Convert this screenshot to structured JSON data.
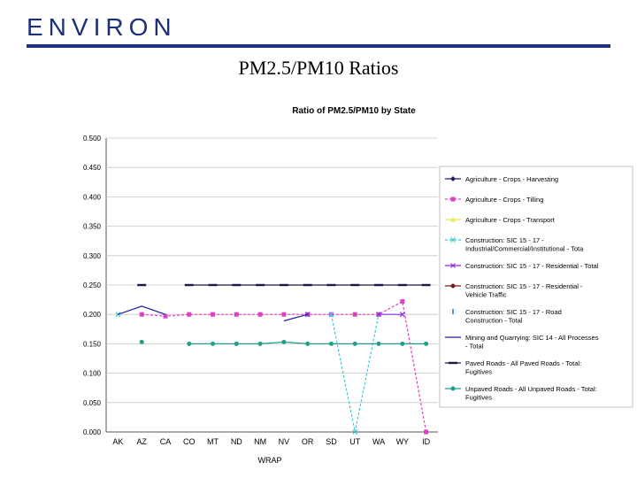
{
  "header": {
    "logo": "ENVIRON",
    "slide_title": "PM2.5/PM10 Ratios"
  },
  "colors": {
    "brand": "#1c2f7a",
    "grid": "#c8c8c8"
  },
  "chart_data": {
    "type": "line",
    "title": "Ratio of PM2.5/PM10 by State",
    "xlabel": "WRAP",
    "ylabel": "",
    "ylim": [
      0,
      0.5
    ],
    "grid": true,
    "legend_position": "right",
    "y_ticks": [
      "0.000",
      "0.050",
      "0.100",
      "0.150",
      "0.200",
      "0.250",
      "0.300",
      "0.350",
      "0.400",
      "0.450",
      "0.500"
    ],
    "categories": [
      "AK",
      "AZ",
      "CA",
      "CO",
      "MT",
      "ND",
      "NM",
      "NV",
      "OR",
      "SD",
      "UT",
      "WA",
      "WY",
      "ID"
    ],
    "series": [
      {
        "name": "Agriculture - Crops - Harvesting",
        "color": "#1f1f6e",
        "marker": "diamond",
        "dashed": false,
        "values": [
          null,
          null,
          null,
          null,
          null,
          null,
          null,
          null,
          null,
          null,
          null,
          null,
          null,
          null
        ]
      },
      {
        "name": "Agriculture - Crops - Tilling",
        "color": "#e040c0",
        "marker": "square",
        "dashed": true,
        "values": [
          null,
          0.2,
          0.197,
          0.2,
          0.2,
          0.2,
          0.2,
          0.2,
          0.2,
          0.2,
          0.2,
          0.2,
          0.222,
          0
        ]
      },
      {
        "name": "Agriculture - Crops - Transport",
        "color": "#e8e84a",
        "marker": "triangle",
        "dashed": false,
        "values": [
          null,
          null,
          null,
          null,
          null,
          null,
          null,
          null,
          null,
          null,
          null,
          null,
          null,
          null
        ]
      },
      {
        "name": "Construction: SIC 15 - 17 - Industrial/Commercial/Institutional - Total",
        "color": "#40c8d8",
        "marker": "x",
        "dashed": true,
        "values": [
          0.2,
          null,
          null,
          null,
          null,
          null,
          null,
          null,
          null,
          0.2,
          0,
          0.2,
          null,
          null
        ]
      },
      {
        "name": "Construction: SIC 15 - 17 - Residential - Total",
        "color": "#8a2be2",
        "marker": "x",
        "dashed": false,
        "values": [
          null,
          null,
          null,
          null,
          null,
          null,
          null,
          null,
          0.2,
          null,
          null,
          0.2,
          0.2,
          null
        ]
      },
      {
        "name": "Construction: SIC 15 - 17 - Residential - Vehicle Traffic",
        "color": "#7a1f1f",
        "marker": "circle",
        "dashed": false,
        "values": [
          null,
          null,
          null,
          null,
          null,
          null,
          null,
          null,
          null,
          null,
          null,
          null,
          null,
          null
        ]
      },
      {
        "name": "Construction: SIC 15 - 17 - Road Construction - Total",
        "color": "#2e8bc0",
        "marker": "bar",
        "dashed": false,
        "values": [
          null,
          null,
          null,
          null,
          null,
          null,
          null,
          null,
          null,
          null,
          null,
          null,
          null,
          null
        ]
      },
      {
        "name": "Mining and Quarrying: SIC 14 - All Processes - Total",
        "color": "#1f1f9e",
        "marker": "none",
        "dashed": false,
        "values": [
          0.2,
          0.214,
          0.2,
          null,
          null,
          null,
          null,
          0.189,
          0.2,
          null,
          null,
          null,
          0.2,
          null
        ]
      },
      {
        "name": "Paved Roads - All Paved Roads - Total: Fugitives",
        "color": "#1a1a4a",
        "marker": "dash",
        "dashed": false,
        "values": [
          null,
          0.25,
          null,
          0.25,
          0.25,
          0.25,
          0.25,
          0.25,
          0.25,
          0.25,
          0.25,
          0.25,
          0.25,
          0.25
        ]
      },
      {
        "name": "Unpaved Roads - All Unpaved Roads - Total: Fugitives",
        "color": "#1f9e8a",
        "marker": "circle",
        "dashed": false,
        "values": [
          null,
          0.153,
          null,
          0.15,
          0.15,
          0.15,
          0.15,
          0.153,
          0.15,
          0.15,
          0.15,
          0.15,
          0.15,
          0.15
        ]
      }
    ],
    "legend": [
      "Agriculture - Crops - Harvesting",
      "Agriculture - Crops - Tilling",
      "Agriculture - Crops - Transport",
      "Construction: SIC 15 - 17 -",
      "Industrial/Commercial/Institutional - Tota",
      "Construction: SIC 15 - 17 - Residential - Total",
      "Construction: SIC 15 - 17 - Residential -",
      "Vehicle Traffic",
      "Construction: SIC 15 - 17 - Road",
      "Construction - Total",
      "Mining and Quarrying: SIC 14 - All Processes",
      "- Total",
      "Paved Roads - All Paved Roads - Total:",
      "Fugitives",
      "Unpaved Roads - All Unpaved Roads - Total:",
      "Fugitives"
    ]
  }
}
